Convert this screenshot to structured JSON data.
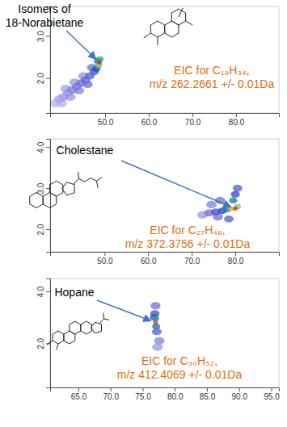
{
  "chart_data": [
    {
      "type": "scatter",
      "x": [
        38.5,
        39.5,
        40.5,
        41.5,
        42.5,
        43.5,
        44.5,
        45.5,
        46.5,
        47.5,
        48.0,
        48.5,
        48.7,
        48.8,
        48.3,
        40.0,
        42.0,
        44.0,
        46.0,
        41.0,
        43.0,
        45.0,
        47.0
      ],
      "values": [
        1.4,
        1.5,
        1.55,
        1.65,
        1.72,
        1.8,
        1.88,
        1.95,
        2.05,
        2.15,
        2.22,
        2.3,
        2.37,
        2.45,
        2.4,
        1.4,
        1.55,
        1.7,
        1.85,
        1.75,
        1.9,
        2.05,
        2.25
      ],
      "intensity": [
        0.05,
        0.08,
        0.1,
        0.12,
        0.15,
        0.18,
        0.2,
        0.22,
        0.25,
        0.3,
        0.45,
        0.7,
        1.0,
        0.6,
        0.5,
        0.06,
        0.1,
        0.15,
        0.2,
        0.08,
        0.1,
        0.12,
        0.2
      ],
      "xlim": [
        37.4,
        89.8
      ],
      "ylim": [
        1.17,
        3.7
      ],
      "xticks": [
        {
          "value": 50,
          "label": "50.0"
        },
        {
          "value": 60,
          "label": "60.0"
        },
        {
          "value": 70,
          "label": "70.0"
        },
        {
          "value": 80,
          "label": "80.0"
        }
      ],
      "yticks": [
        {
          "value": 2,
          "label": "2.0"
        },
        {
          "value": 3,
          "label": "3.0"
        }
      ],
      "annotations": [
        {
          "text": [
            "Isomers of",
            "18-Norabietane"
          ],
          "color": "#000000"
        },
        {
          "text": [
            "EIC for C₁₉H₃₄,",
            "m/z 262.2661 +/- 0.01Da"
          ],
          "color": "#e36c09"
        }
      ]
    },
    {
      "type": "scatter",
      "x": [
        74.0,
        75.5,
        77.0,
        78.0,
        79.0,
        80.0,
        80.5,
        79.5,
        80.0,
        80.5,
        76.0,
        78.5,
        74.5,
        76.5,
        72.5
      ],
      "values": [
        2.4,
        2.42,
        2.45,
        2.48,
        2.5,
        2.5,
        2.55,
        2.7,
        2.85,
        3.0,
        2.3,
        2.25,
        2.6,
        2.7,
        2.35
      ],
      "intensity": [
        0.2,
        0.3,
        0.4,
        0.5,
        0.8,
        1.0,
        0.7,
        0.5,
        0.35,
        0.25,
        0.2,
        0.25,
        0.15,
        0.2,
        0.1
      ],
      "xlim": [
        37.5,
        90.0
      ],
      "ylim": [
        1.45,
        4.2
      ],
      "xticks": [
        {
          "value": 50,
          "label": "50.0"
        },
        {
          "value": 60,
          "label": "60.0"
        },
        {
          "value": 70,
          "label": "70.0"
        },
        {
          "value": 80,
          "label": "80.0"
        }
      ],
      "yticks": [
        {
          "value": 2,
          "label": "2.0"
        },
        {
          "value": 3,
          "label": "3.0"
        },
        {
          "value": 4,
          "label": "4.0"
        }
      ],
      "annotations": [
        {
          "text": [
            "Cholestane"
          ],
          "color": "#000000"
        },
        {
          "text": [
            "EIC for C₂₇H₄₈,",
            "m/z 372.3756 +/- 0.01Da"
          ],
          "color": "#e36c09"
        }
      ]
    },
    {
      "type": "scatter",
      "x": [
        77.0,
        77.0,
        77.1,
        76.9,
        77.0,
        77.2,
        77.6,
        77.3,
        76.8
      ],
      "values": [
        2.8,
        2.95,
        2.65,
        3.15,
        3.45,
        2.45,
        2.1,
        1.85,
        3.0
      ],
      "intensity": [
        1.0,
        0.6,
        0.5,
        0.3,
        0.2,
        0.25,
        0.15,
        0.1,
        0.4
      ],
      "xlim": [
        60.6,
        96.2
      ],
      "ylim": [
        0.3,
        4.5
      ],
      "xticks": [
        {
          "value": 65,
          "label": "65.0"
        },
        {
          "value": 70,
          "label": "70.0"
        },
        {
          "value": 75,
          "label": "75.0"
        },
        {
          "value": 80,
          "label": "80.0"
        },
        {
          "value": 85,
          "label": "85.0"
        },
        {
          "value": 90,
          "label": "90.0"
        },
        {
          "value": 95,
          "label": "95.0"
        }
      ],
      "yticks": [
        {
          "value": 2,
          "label": "2.0"
        },
        {
          "value": 4,
          "label": "4.0"
        }
      ],
      "annotations": [
        {
          "text": [
            "Hopane"
          ],
          "color": "#000000"
        },
        {
          "text": [
            "EIC for C₃₀H₅₂,",
            "m/z 412.4069 +/- 0.01Da"
          ],
          "color": "#e36c09"
        }
      ]
    }
  ]
}
